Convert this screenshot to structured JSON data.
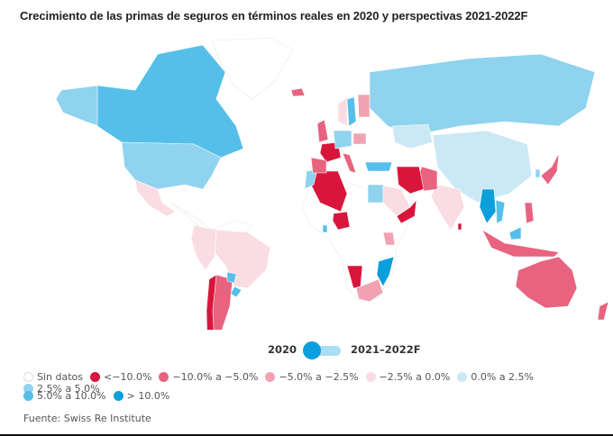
{
  "title": "Crecimiento de las primas de seguros en términos reales en 2020 y perspectivas 2021-2022F",
  "toggle": {
    "left_label": "2020",
    "right_label": "2021–2022F",
    "selected": "2020"
  },
  "legend": [
    {
      "label": "Sin datos",
      "color": "#ffffff",
      "border": "#dddddd"
    },
    {
      "label": "<−10.0%",
      "color": "#d8153b"
    },
    {
      "label": "−10.0% a −5.0%",
      "color": "#e8637f"
    },
    {
      "label": "−5.0% a −2.5%",
      "color": "#f0a2b2"
    },
    {
      "label": "−2.5% a 0.0%",
      "color": "#f9dde3"
    },
    {
      "label": "0.0% a 2.5%",
      "color": "#cbe9f4"
    },
    {
      "label": "2.5% a 5.0%",
      "color": "#8fd3ee"
    },
    {
      "label": "5.0% a 10.0%",
      "color": "#55bfe9"
    },
    {
      "label": "> 10.0%",
      "color": "#0b9fdc"
    }
  ],
  "source": "Fuente: Swiss Re Institute",
  "regions": [
    {
      "name": "Alaska",
      "class": 6
    },
    {
      "name": "Canada",
      "class": 7
    },
    {
      "name": "United States",
      "class": 6
    },
    {
      "name": "Mexico",
      "class": 4
    },
    {
      "name": "Greenland",
      "class": 0
    },
    {
      "name": "Iceland",
      "class": 2
    },
    {
      "name": "Brazil",
      "class": 4
    },
    {
      "name": "Colombia/Peru",
      "class": 4
    },
    {
      "name": "Argentina",
      "class": 2
    },
    {
      "name": "Chile",
      "class": 1
    },
    {
      "name": "Uruguay",
      "class": 7
    },
    {
      "name": "Paraguay",
      "class": 7
    },
    {
      "name": "Russia",
      "class": 6
    },
    {
      "name": "China",
      "class": 5
    },
    {
      "name": "Kazakhstan",
      "class": 5
    },
    {
      "name": "India",
      "class": 4
    },
    {
      "name": "Pakistan",
      "class": 2
    },
    {
      "name": "Iran",
      "class": 1
    },
    {
      "name": "Saudi Arabia",
      "class": 4
    },
    {
      "name": "Yemen/Oman",
      "class": 1
    },
    {
      "name": "Egypt",
      "class": 6
    },
    {
      "name": "Algeria",
      "class": 1
    },
    {
      "name": "Morocco",
      "class": 6
    },
    {
      "name": "Nigeria",
      "class": 1
    },
    {
      "name": "Ghana",
      "class": 7
    },
    {
      "name": "Kenya",
      "class": 3
    },
    {
      "name": "Namibia",
      "class": 1
    },
    {
      "name": "South Africa",
      "class": 3
    },
    {
      "name": "Mozambique",
      "class": 8
    },
    {
      "name": "France",
      "class": 1
    },
    {
      "name": "Spain",
      "class": 2
    },
    {
      "name": "United Kingdom",
      "class": 2
    },
    {
      "name": "Italy",
      "class": 2
    },
    {
      "name": "Germany",
      "class": 6
    },
    {
      "name": "Poland",
      "class": 3
    },
    {
      "name": "Sweden",
      "class": 7
    },
    {
      "name": "Norway",
      "class": 4
    },
    {
      "name": "Finland",
      "class": 3
    },
    {
      "name": "Turkey",
      "class": 7
    },
    {
      "name": "Japan",
      "class": 2
    },
    {
      "name": "Korea",
      "class": 6
    },
    {
      "name": "Thailand/Myanmar",
      "class": 8
    },
    {
      "name": "Vietnam",
      "class": 7
    },
    {
      "name": "Indonesia",
      "class": 2
    },
    {
      "name": "Malaysia",
      "class": 7
    },
    {
      "name": "Philippines",
      "class": 2
    },
    {
      "name": "Australia",
      "class": 2
    },
    {
      "name": "New Zealand",
      "class": 2
    },
    {
      "name": "Sri Lanka",
      "class": 1
    }
  ]
}
